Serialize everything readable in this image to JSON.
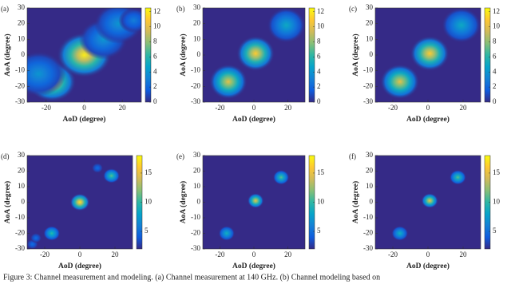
{
  "caption": "Figure 3: Channel measurement and modeling. (a) Channel measurement at 140 GHz. (b) Channel modeling based on",
  "chart_data": [
    {
      "type": "heatmap",
      "panel": "(a)",
      "xlabel": "AoD (degree)",
      "ylabel": "AoA (degree)",
      "xlim": [
        -30,
        30
      ],
      "ylim": [
        -30,
        30
      ],
      "xticks": [
        -20,
        0,
        20
      ],
      "yticks": [
        -30,
        -20,
        -10,
        0,
        10,
        20,
        30
      ],
      "clim": [
        0,
        12.5
      ],
      "cticks": [
        0,
        2,
        4,
        6,
        8,
        10,
        12
      ],
      "x": [
        -17,
        0,
        -24,
        10,
        18,
        26
      ],
      "y": [
        -17,
        0,
        -12,
        10,
        20,
        22
      ],
      "values": [
        11,
        12,
        4,
        4,
        4,
        3
      ],
      "size": [
        8,
        9,
        9,
        8,
        8,
        5
      ]
    },
    {
      "type": "heatmap",
      "panel": "(b)",
      "xlabel": "AoD (degree)",
      "ylabel": "AoA (degree)",
      "xlim": [
        -30,
        30
      ],
      "ylim": [
        -30,
        30
      ],
      "xticks": [
        -20,
        0,
        20
      ],
      "yticks": [
        -30,
        -20,
        -10,
        0,
        10,
        20,
        30
      ],
      "clim": [
        0,
        12.5
      ],
      "cticks": [
        0,
        2,
        4,
        6,
        8,
        10,
        12
      ],
      "x": [
        -15,
        1,
        19
      ],
      "y": [
        -17,
        1,
        19
      ],
      "values": [
        10,
        11,
        5
      ],
      "size": [
        7,
        7,
        7
      ]
    },
    {
      "type": "heatmap",
      "panel": "(c)",
      "xlabel": "AoD (degree)",
      "ylabel": "AoA (degree)",
      "xlim": [
        -30,
        30
      ],
      "ylim": [
        -30,
        30
      ],
      "xticks": [
        -20,
        0,
        20
      ],
      "yticks": [
        -30,
        -20,
        -10,
        0,
        10,
        20,
        30
      ],
      "clim": [
        0,
        12.5
      ],
      "cticks": [
        0,
        2,
        4,
        6,
        8,
        10,
        12
      ],
      "x": [
        -16,
        1,
        19
      ],
      "y": [
        -17,
        1,
        19
      ],
      "values": [
        10,
        11,
        5
      ],
      "size": [
        7,
        7,
        7
      ]
    },
    {
      "type": "heatmap",
      "panel": "(d)",
      "xlabel": "AoD (degree)",
      "ylabel": "AoA (degree)",
      "xlim": [
        -30,
        30
      ],
      "ylim": [
        -30,
        30
      ],
      "xticks": [
        -20,
        0,
        20
      ],
      "yticks": [
        -30,
        -20,
        -10,
        0,
        10,
        20,
        30
      ],
      "clim": [
        2,
        18
      ],
      "cticks": [
        5,
        10,
        15
      ],
      "x": [
        -16,
        0,
        18,
        -27,
        -25,
        10
      ],
      "y": [
        -20,
        0,
        17,
        -27,
        -23,
        22
      ],
      "values": [
        10,
        17,
        11,
        5,
        5,
        5
      ],
      "size": [
        3,
        3.5,
        3,
        2,
        2,
        2
      ]
    },
    {
      "type": "heatmap",
      "panel": "(e)",
      "xlabel": "AoD (degree)",
      "ylabel": "AoA (degree)",
      "xlim": [
        -30,
        30
      ],
      "ylim": [
        -30,
        30
      ],
      "xticks": [
        -20,
        0,
        20
      ],
      "yticks": [
        -30,
        -20,
        -10,
        0,
        10,
        20,
        30
      ],
      "clim": [
        2,
        18
      ],
      "cticks": [
        5,
        10,
        15
      ],
      "x": [
        -16,
        1,
        16
      ],
      "y": [
        -20,
        1,
        16
      ],
      "values": [
        9,
        15,
        11
      ],
      "size": [
        3,
        3,
        3
      ]
    },
    {
      "type": "heatmap",
      "panel": "(f)",
      "xlabel": "AoD (degree)",
      "ylabel": "AoA (degree)",
      "xlim": [
        -30,
        30
      ],
      "ylim": [
        -30,
        30
      ],
      "xticks": [
        -20,
        0,
        20
      ],
      "yticks": [
        -30,
        -20,
        -10,
        0,
        10,
        20,
        30
      ],
      "clim": [
        2,
        18
      ],
      "cticks": [
        5,
        10,
        15
      ],
      "x": [
        -16,
        1,
        17
      ],
      "y": [
        -20,
        1,
        16
      ],
      "values": [
        9,
        15,
        11
      ],
      "size": [
        3,
        3,
        3
      ]
    }
  ]
}
